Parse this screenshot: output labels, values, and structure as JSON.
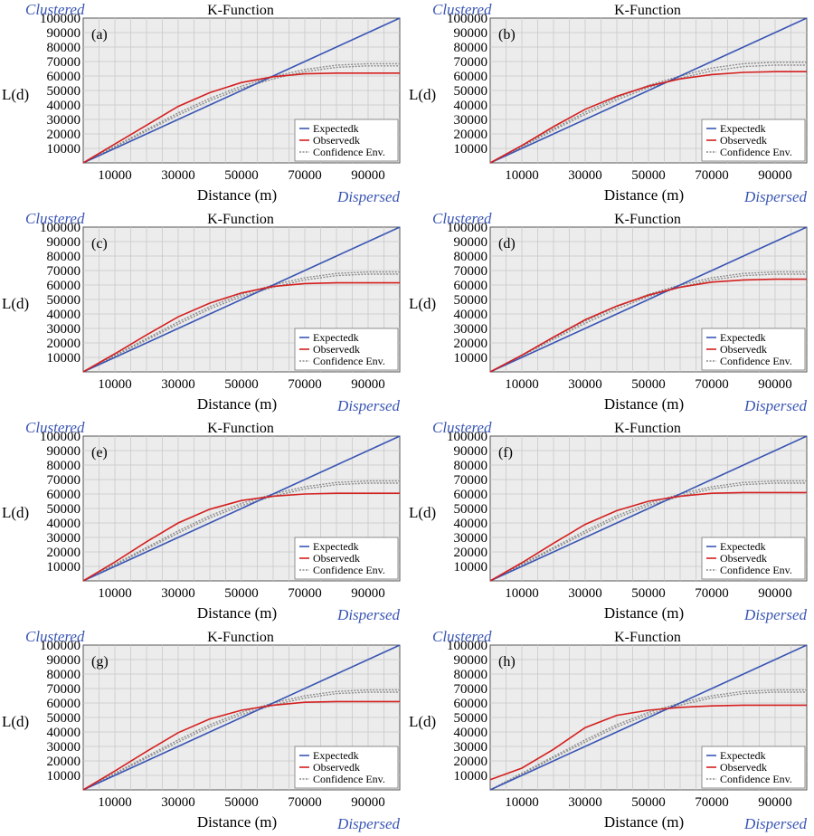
{
  "colors": {
    "expected": "#3a56b4",
    "observed": "#d42020",
    "confidence": "#8c8c8c",
    "plot_background": "#ececec",
    "grid": "#c9c9c9",
    "corner_label": "#3a56b4"
  },
  "chart_data": [
    {
      "type": "line",
      "panel": "(a)",
      "title": "K-Function",
      "xlabel": "Distance (m)",
      "ylabel": "L(d)",
      "corner_top": "Clustered",
      "corner_bottom": "Dispersed",
      "xlim": [
        0,
        100000
      ],
      "ylim": [
        0,
        100000
      ],
      "x_ticks": [
        10000,
        30000,
        50000,
        70000,
        90000
      ],
      "y_ticks": [
        10000,
        20000,
        30000,
        40000,
        50000,
        60000,
        70000,
        80000,
        90000,
        100000
      ],
      "grid": true,
      "legend_position": "bottom-right",
      "x": [
        0,
        10000,
        20000,
        30000,
        40000,
        50000,
        60000,
        70000,
        80000,
        90000,
        100000
      ],
      "series": [
        {
          "name": "Expectedk",
          "values": [
            0,
            10000,
            20000,
            30000,
            40000,
            50000,
            60000,
            70000,
            80000,
            90000,
            100000
          ]
        },
        {
          "name": "Observedk",
          "values": [
            0,
            13000,
            26000,
            39000,
            48500,
            55500,
            59500,
            61500,
            62000,
            62000,
            62000
          ]
        },
        {
          "name": "Confidence Env.",
          "upper": [
            0,
            11500,
            23000,
            34500,
            44500,
            53000,
            59500,
            64500,
            67500,
            68500,
            68500
          ],
          "lower": [
            0,
            11000,
            22000,
            33000,
            43000,
            51500,
            58000,
            63000,
            66000,
            67000,
            67000
          ]
        }
      ]
    },
    {
      "type": "line",
      "panel": "(b)",
      "title": "K-Function",
      "xlabel": "Distance (m)",
      "ylabel": "L(d)",
      "corner_top": "Clustered",
      "corner_bottom": "Dispersed",
      "xlim": [
        0,
        100000
      ],
      "ylim": [
        0,
        100000
      ],
      "x_ticks": [
        10000,
        30000,
        50000,
        70000,
        90000
      ],
      "y_ticks": [
        10000,
        20000,
        30000,
        40000,
        50000,
        60000,
        70000,
        80000,
        90000,
        100000
      ],
      "grid": true,
      "legend_position": "bottom-right",
      "x": [
        0,
        10000,
        20000,
        30000,
        40000,
        50000,
        60000,
        70000,
        80000,
        90000,
        100000
      ],
      "series": [
        {
          "name": "Expectedk",
          "values": [
            0,
            10000,
            20000,
            30000,
            40000,
            50000,
            60000,
            70000,
            80000,
            90000,
            100000
          ]
        },
        {
          "name": "Observedk",
          "values": [
            0,
            12000,
            25000,
            37000,
            46000,
            53000,
            58000,
            61000,
            62500,
            63000,
            63000
          ]
        },
        {
          "name": "Confidence Env.",
          "upper": [
            0,
            11500,
            23500,
            35000,
            45000,
            53500,
            60000,
            65500,
            68500,
            69500,
            69500
          ],
          "lower": [
            0,
            11000,
            22500,
            33500,
            43500,
            52000,
            58500,
            63500,
            66500,
            67500,
            67500
          ]
        }
      ]
    },
    {
      "type": "line",
      "panel": "(c)",
      "title": "K-Function",
      "xlabel": "Distance (m)",
      "ylabel": "L(d)",
      "corner_top": "Clustered",
      "corner_bottom": "Dispersed",
      "xlim": [
        0,
        100000
      ],
      "ylim": [
        0,
        100000
      ],
      "x_ticks": [
        10000,
        30000,
        50000,
        70000,
        90000
      ],
      "y_ticks": [
        10000,
        20000,
        30000,
        40000,
        50000,
        60000,
        70000,
        80000,
        90000,
        100000
      ],
      "grid": true,
      "legend_position": "bottom-right",
      "x": [
        0,
        10000,
        20000,
        30000,
        40000,
        50000,
        60000,
        70000,
        80000,
        90000,
        100000
      ],
      "series": [
        {
          "name": "Expectedk",
          "values": [
            0,
            10000,
            20000,
            30000,
            40000,
            50000,
            60000,
            70000,
            80000,
            90000,
            100000
          ]
        },
        {
          "name": "Observedk",
          "values": [
            0,
            12500,
            25500,
            38000,
            47500,
            54500,
            59000,
            61000,
            61500,
            61500,
            61500
          ]
        },
        {
          "name": "Confidence Env.",
          "upper": [
            0,
            11500,
            23000,
            34500,
            45000,
            53500,
            60000,
            65000,
            68000,
            69000,
            69000
          ],
          "lower": [
            0,
            11000,
            22000,
            33000,
            43500,
            52000,
            58500,
            63500,
            66500,
            67500,
            67500
          ]
        }
      ]
    },
    {
      "type": "line",
      "panel": "(d)",
      "title": "K-Function",
      "xlabel": "Distance (m)",
      "ylabel": "L(d)",
      "corner_top": "Clustered",
      "corner_bottom": "Dispersed",
      "xlim": [
        0,
        100000
      ],
      "ylim": [
        0,
        100000
      ],
      "x_ticks": [
        10000,
        30000,
        50000,
        70000,
        90000
      ],
      "y_ticks": [
        10000,
        20000,
        30000,
        40000,
        50000,
        60000,
        70000,
        80000,
        90000,
        100000
      ],
      "grid": true,
      "legend_position": "bottom-right",
      "x": [
        0,
        10000,
        20000,
        30000,
        40000,
        50000,
        60000,
        70000,
        80000,
        90000,
        100000
      ],
      "series": [
        {
          "name": "Expectedk",
          "values": [
            0,
            10000,
            20000,
            30000,
            40000,
            50000,
            60000,
            70000,
            80000,
            90000,
            100000
          ]
        },
        {
          "name": "Observedk",
          "values": [
            0,
            11500,
            24000,
            36000,
            45500,
            53000,
            58500,
            62000,
            63500,
            64000,
            64000
          ]
        },
        {
          "name": "Confidence Env.",
          "upper": [
            0,
            11500,
            23500,
            35000,
            45000,
            53500,
            60000,
            65000,
            68000,
            69000,
            69000
          ],
          "lower": [
            0,
            11000,
            22500,
            33500,
            43500,
            52000,
            58500,
            63500,
            66500,
            67500,
            67500
          ]
        }
      ]
    },
    {
      "type": "line",
      "panel": "(e)",
      "title": "K-Function",
      "xlabel": "Distance (m)",
      "ylabel": "L(d)",
      "corner_top": "Clustered",
      "corner_bottom": "Dispersed",
      "xlim": [
        0,
        100000
      ],
      "ylim": [
        0,
        100000
      ],
      "x_ticks": [
        10000,
        30000,
        50000,
        70000,
        90000
      ],
      "y_ticks": [
        10000,
        20000,
        30000,
        40000,
        50000,
        60000,
        70000,
        80000,
        90000,
        100000
      ],
      "grid": true,
      "legend_position": "bottom-right",
      "x": [
        0,
        10000,
        20000,
        30000,
        40000,
        50000,
        60000,
        70000,
        80000,
        90000,
        100000
      ],
      "series": [
        {
          "name": "Expectedk",
          "values": [
            0,
            10000,
            20000,
            30000,
            40000,
            50000,
            60000,
            70000,
            80000,
            90000,
            100000
          ]
        },
        {
          "name": "Observedk",
          "values": [
            0,
            13000,
            27000,
            40000,
            49500,
            55500,
            58500,
            60000,
            60500,
            60500,
            60500
          ]
        },
        {
          "name": "Confidence Env.",
          "upper": [
            0,
            11500,
            23000,
            34500,
            45000,
            53500,
            60000,
            65000,
            68000,
            69000,
            69000
          ],
          "lower": [
            0,
            11000,
            22000,
            33000,
            43500,
            52000,
            58500,
            63500,
            66500,
            67500,
            67500
          ]
        }
      ]
    },
    {
      "type": "line",
      "panel": "(f)",
      "title": "K-Function",
      "xlabel": "Distance (m)",
      "ylabel": "L(d)",
      "corner_top": "Clustered",
      "corner_bottom": "Dispersed",
      "xlim": [
        0,
        100000
      ],
      "ylim": [
        0,
        100000
      ],
      "x_ticks": [
        10000,
        30000,
        50000,
        70000,
        90000
      ],
      "y_ticks": [
        10000,
        20000,
        30000,
        40000,
        50000,
        60000,
        70000,
        80000,
        90000,
        100000
      ],
      "grid": true,
      "legend_position": "bottom-right",
      "x": [
        0,
        10000,
        20000,
        30000,
        40000,
        50000,
        60000,
        70000,
        80000,
        90000,
        100000
      ],
      "series": [
        {
          "name": "Expectedk",
          "values": [
            0,
            10000,
            20000,
            30000,
            40000,
            50000,
            60000,
            70000,
            80000,
            90000,
            100000
          ]
        },
        {
          "name": "Observedk",
          "values": [
            0,
            12500,
            26000,
            39000,
            48500,
            55000,
            58500,
            60500,
            61000,
            61000,
            61000
          ]
        },
        {
          "name": "Confidence Env.",
          "upper": [
            0,
            11500,
            23000,
            34500,
            45000,
            53500,
            60000,
            65000,
            68000,
            69000,
            69000
          ],
          "lower": [
            0,
            11000,
            22000,
            33000,
            43500,
            52000,
            58500,
            63500,
            66500,
            67500,
            67500
          ]
        }
      ]
    },
    {
      "type": "line",
      "panel": "(g)",
      "title": "K-Function",
      "xlabel": "Distance (m)",
      "ylabel": "L(d)",
      "corner_top": "Clustered",
      "corner_bottom": "Dispersed",
      "xlim": [
        0,
        100000
      ],
      "ylim": [
        0,
        100000
      ],
      "x_ticks": [
        10000,
        30000,
        50000,
        70000,
        90000
      ],
      "y_ticks": [
        10000,
        20000,
        30000,
        40000,
        50000,
        60000,
        70000,
        80000,
        90000,
        100000
      ],
      "grid": true,
      "legend_position": "bottom-right",
      "x": [
        0,
        10000,
        20000,
        30000,
        40000,
        50000,
        60000,
        70000,
        80000,
        90000,
        100000
      ],
      "series": [
        {
          "name": "Expectedk",
          "values": [
            0,
            10000,
            20000,
            30000,
            40000,
            50000,
            60000,
            70000,
            80000,
            90000,
            100000
          ]
        },
        {
          "name": "Observedk",
          "values": [
            0,
            13000,
            26500,
            39500,
            49000,
            55000,
            58500,
            60500,
            61000,
            61000,
            61000
          ]
        },
        {
          "name": "Confidence Env.",
          "upper": [
            0,
            11500,
            23000,
            34500,
            45000,
            53500,
            60000,
            65000,
            68000,
            69000,
            69000
          ],
          "lower": [
            0,
            11000,
            22000,
            33000,
            43500,
            52000,
            58500,
            63500,
            66500,
            67500,
            67500
          ]
        }
      ]
    },
    {
      "type": "line",
      "panel": "(h)",
      "title": "K-Function",
      "xlabel": "Distance (m)",
      "ylabel": "L(d)",
      "corner_top": "Clustered",
      "corner_bottom": "Dispersed",
      "xlim": [
        0,
        100000
      ],
      "ylim": [
        0,
        100000
      ],
      "x_ticks": [
        10000,
        30000,
        50000,
        70000,
        90000
      ],
      "y_ticks": [
        10000,
        20000,
        30000,
        40000,
        50000,
        60000,
        70000,
        80000,
        90000,
        100000
      ],
      "grid": true,
      "legend_position": "bottom-right",
      "x": [
        0,
        10000,
        20000,
        30000,
        40000,
        50000,
        60000,
        70000,
        80000,
        90000,
        100000
      ],
      "series": [
        {
          "name": "Expectedk",
          "values": [
            0,
            10000,
            20000,
            30000,
            40000,
            50000,
            60000,
            70000,
            80000,
            90000,
            100000
          ]
        },
        {
          "name": "Observedk",
          "values": [
            7000,
            15000,
            28000,
            43000,
            51500,
            55000,
            57000,
            58000,
            58500,
            58500,
            58500
          ]
        },
        {
          "name": "Confidence Env.",
          "upper": [
            0,
            11500,
            23000,
            34500,
            45000,
            53500,
            60000,
            65000,
            68000,
            69000,
            69000
          ],
          "lower": [
            0,
            11000,
            22000,
            33000,
            43500,
            52000,
            58500,
            63500,
            66500,
            67500,
            67500
          ]
        }
      ]
    }
  ]
}
